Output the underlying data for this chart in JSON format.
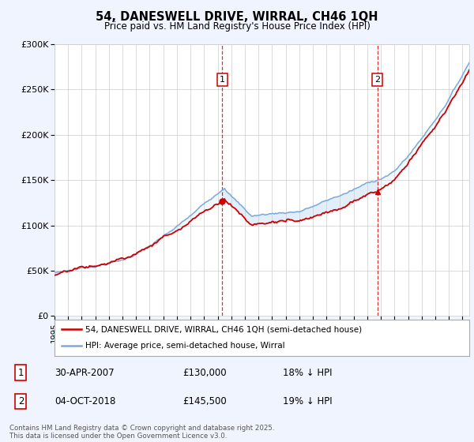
{
  "title_line1": "54, DANESWELL DRIVE, WIRRAL, CH46 1QH",
  "title_line2": "Price paid vs. HM Land Registry's House Price Index (HPI)",
  "property_label": "54, DANESWELL DRIVE, WIRRAL, CH46 1QH (semi-detached house)",
  "hpi_label": "HPI: Average price, semi-detached house, Wirral",
  "property_color": "#cc0000",
  "hpi_color": "#7aaadd",
  "fill_color": "#d0e4f7",
  "sale1_date": "30-APR-2007",
  "sale1_price": 130000,
  "sale1_pct": "18% ↓ HPI",
  "sale2_date": "04-OCT-2018",
  "sale2_price": 145500,
  "sale2_pct": "19% ↓ HPI",
  "vline1_year": 2007.33,
  "vline2_year": 2018.75,
  "ylim": [
    0,
    300000
  ],
  "xlim_start": 1995,
  "xlim_end": 2025.5,
  "yticks": [
    0,
    50000,
    100000,
    150000,
    200000,
    250000,
    300000
  ],
  "ytick_labels": [
    "£0",
    "£50K",
    "£100K",
    "£150K",
    "£200K",
    "£250K",
    "£300K"
  ],
  "footnote": "Contains HM Land Registry data © Crown copyright and database right 2025.\nThis data is licensed under the Open Government Licence v3.0.",
  "background_color": "#f0f4ff",
  "plot_bg_color": "#ffffff"
}
